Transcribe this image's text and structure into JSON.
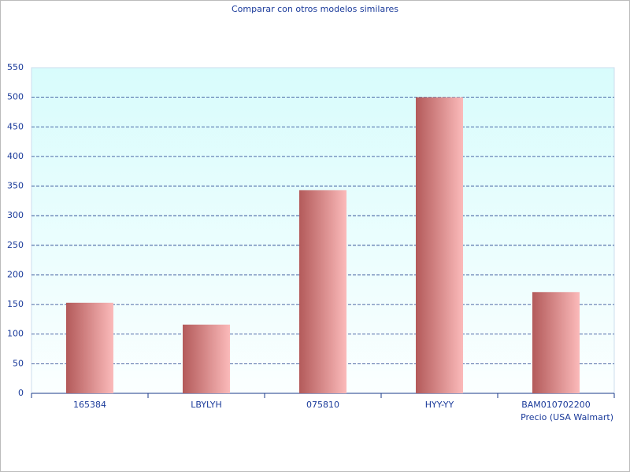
{
  "chart_data": {
    "type": "bar",
    "title": "Comparar con otros modelos similares",
    "categories": [
      "165384",
      "LBYLYH",
      "075810",
      "HYY-YY",
      "BAM010702200"
    ],
    "values": [
      153,
      116,
      343,
      500,
      171
    ],
    "x_label": "Precio (USA Walmart)",
    "color": [
      "#b35a5a",
      "#fbbaba"
    ],
    "ylim": [
      0,
      550
    ],
    "yticks": [
      0,
      50,
      100,
      150,
      200,
      250,
      300,
      350,
      400,
      450,
      500,
      550
    ],
    "grid": true
  }
}
